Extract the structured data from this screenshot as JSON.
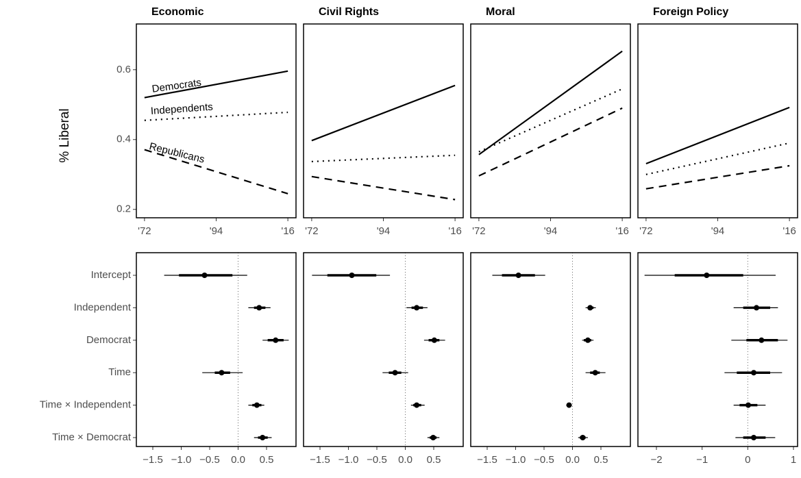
{
  "chart_data": [
    {
      "type": "line",
      "title": "Economic",
      "y_label": "% Liberal",
      "x": [
        1972,
        2016
      ],
      "xlim": [
        1969.5,
        2018.5
      ],
      "xticks": [
        {
          "value": 1972,
          "label": "'72"
        },
        {
          "value": 1994,
          "label": "'94"
        },
        {
          "value": 2016,
          "label": "'16"
        }
      ],
      "ylim": [
        0.176,
        0.731
      ],
      "yticks": [
        0.2,
        0.4,
        0.6
      ],
      "series": [
        {
          "name": "Democrats",
          "dash": "solid",
          "values": [
            0.52,
            0.596
          ]
        },
        {
          "name": "Independents",
          "dash": "dotted",
          "values": [
            0.455,
            0.478
          ]
        },
        {
          "name": "Republicans",
          "dash": "dashed",
          "values": [
            0.371,
            0.245
          ]
        }
      ]
    },
    {
      "type": "line",
      "title": "Civil Rights",
      "x": [
        1972,
        2016
      ],
      "xlim": [
        1969.5,
        2018.5
      ],
      "xticks": [
        {
          "value": 1972,
          "label": "'72"
        },
        {
          "value": 1994,
          "label": "'94"
        },
        {
          "value": 2016,
          "label": "'16"
        }
      ],
      "ylim": [
        0.176,
        0.731
      ],
      "series": [
        {
          "dash": "solid",
          "values": [
            0.397,
            0.555
          ]
        },
        {
          "dash": "dotted",
          "values": [
            0.337,
            0.355
          ]
        },
        {
          "dash": "dashed",
          "values": [
            0.294,
            0.228
          ]
        }
      ]
    },
    {
      "type": "line",
      "title": "Moral",
      "x": [
        1972,
        2016
      ],
      "xlim": [
        1969.5,
        2018.5
      ],
      "xticks": [
        {
          "value": 1972,
          "label": "'72"
        },
        {
          "value": 1994,
          "label": "'94"
        },
        {
          "value": 2016,
          "label": "'16"
        }
      ],
      "ylim": [
        0.176,
        0.731
      ],
      "series": [
        {
          "dash": "solid",
          "values": [
            0.357,
            0.653
          ]
        },
        {
          "dash": "dotted",
          "values": [
            0.365,
            0.545
          ]
        },
        {
          "dash": "dashed",
          "values": [
            0.296,
            0.49
          ]
        }
      ]
    },
    {
      "type": "line",
      "title": "Foreign Policy",
      "x": [
        1972,
        2016
      ],
      "xlim": [
        1969.5,
        2018.5
      ],
      "xticks": [
        {
          "value": 1972,
          "label": "'72"
        },
        {
          "value": 1994,
          "label": "'94"
        },
        {
          "value": 2016,
          "label": "'16"
        }
      ],
      "ylim": [
        0.176,
        0.731
      ],
      "series": [
        {
          "dash": "solid",
          "values": [
            0.331,
            0.492
          ]
        },
        {
          "dash": "dotted",
          "values": [
            0.3,
            0.39
          ]
        },
        {
          "dash": "dashed",
          "values": [
            0.259,
            0.325
          ]
        }
      ]
    },
    {
      "type": "coefficient",
      "categories": [
        "Intercept",
        "Independent",
        "Democrat",
        "Time",
        "Time × Independent",
        "Time × Democrat"
      ],
      "xlim": [
        -1.789,
        1.018
      ],
      "xticks": [
        {
          "value": -1.5,
          "label": "−1.5"
        },
        {
          "value": -1.0,
          "label": "−1.0"
        },
        {
          "value": -0.5,
          "label": "−0.5"
        },
        {
          "value": 0,
          "label": "0.0"
        },
        0.5
      ],
      "reference": 0,
      "estimates": [
        -0.59,
        0.37,
        0.66,
        -0.29,
        0.33,
        0.43
      ],
      "inner": [
        [
          -1.04,
          -0.1
        ],
        [
          0.28,
          0.48
        ],
        [
          0.52,
          0.8
        ],
        [
          -0.41,
          -0.14
        ],
        [
          0.25,
          0.41
        ],
        [
          0.35,
          0.52
        ]
      ],
      "outer": [
        [
          -1.3,
          0.16
        ],
        [
          0.18,
          0.57
        ],
        [
          0.43,
          0.89
        ],
        [
          -0.63,
          0.08
        ],
        [
          0.18,
          0.46
        ],
        [
          0.28,
          0.59
        ]
      ]
    },
    {
      "type": "coefficient",
      "xlim": [
        -1.789,
        1.018
      ],
      "xticks": [
        {
          "value": -1.5,
          "label": "−1.5"
        },
        {
          "value": -1.0,
          "label": "−1.0"
        },
        {
          "value": -0.5,
          "label": "−0.5"
        },
        {
          "value": 0,
          "label": "0.0"
        },
        0.5
      ],
      "reference": 0,
      "estimates": [
        -0.94,
        0.2,
        0.51,
        -0.18,
        0.2,
        0.49
      ],
      "inner": [
        [
          -1.37,
          -0.51
        ],
        [
          0.11,
          0.31
        ],
        [
          0.41,
          0.6
        ],
        [
          -0.29,
          -0.07
        ],
        [
          0.14,
          0.28
        ],
        [
          0.43,
          0.55
        ]
      ],
      "outer": [
        [
          -1.64,
          -0.27
        ],
        [
          0.02,
          0.39
        ],
        [
          0.33,
          0.7
        ],
        [
          -0.4,
          0.05
        ],
        [
          0.1,
          0.34
        ],
        [
          0.39,
          0.6
        ]
      ]
    },
    {
      "type": "coefficient",
      "xlim": [
        -1.789,
        1.018
      ],
      "xticks": [
        {
          "value": -1.5,
          "label": "−1.5"
        },
        {
          "value": -1.0,
          "label": "−1.0"
        },
        {
          "value": -0.5,
          "label": "−0.5"
        },
        {
          "value": 0,
          "label": "0.0"
        },
        0.5
      ],
      "reference": 0,
      "estimates": [
        -0.95,
        0.31,
        0.27,
        0.4,
        -0.06,
        0.18
      ],
      "inner": [
        [
          -1.24,
          -0.66
        ],
        [
          0.27,
          0.37
        ],
        [
          0.2,
          0.33
        ],
        [
          0.31,
          0.48
        ],
        [
          -0.08,
          -0.04
        ],
        [
          0.13,
          0.23
        ]
      ],
      "outer": [
        [
          -1.41,
          -0.48
        ],
        [
          0.23,
          0.41
        ],
        [
          0.17,
          0.37
        ],
        [
          0.23,
          0.58
        ],
        [
          -0.11,
          -0.01
        ],
        [
          0.1,
          0.27
        ]
      ]
    },
    {
      "type": "coefficient",
      "xlim": [
        -2.405,
        1.09
      ],
      "xticks": [
        {
          "value": -2,
          "label": "−2"
        },
        {
          "value": -1,
          "label": "−1"
        },
        0,
        1
      ],
      "reference": 0,
      "estimates": [
        -0.9,
        0.19,
        0.3,
        0.13,
        0.01,
        0.13
      ],
      "inner": [
        [
          -1.6,
          -0.1
        ],
        [
          -0.1,
          0.49
        ],
        [
          -0.03,
          0.66
        ],
        [
          -0.24,
          0.49
        ],
        [
          -0.18,
          0.21
        ],
        [
          -0.1,
          0.39
        ]
      ],
      "outer": [
        [
          -2.26,
          0.61
        ],
        [
          -0.31,
          0.66
        ],
        [
          -0.36,
          0.87
        ],
        [
          -0.51,
          0.75
        ],
        [
          -0.31,
          0.39
        ],
        [
          -0.27,
          0.6
        ]
      ]
    }
  ]
}
